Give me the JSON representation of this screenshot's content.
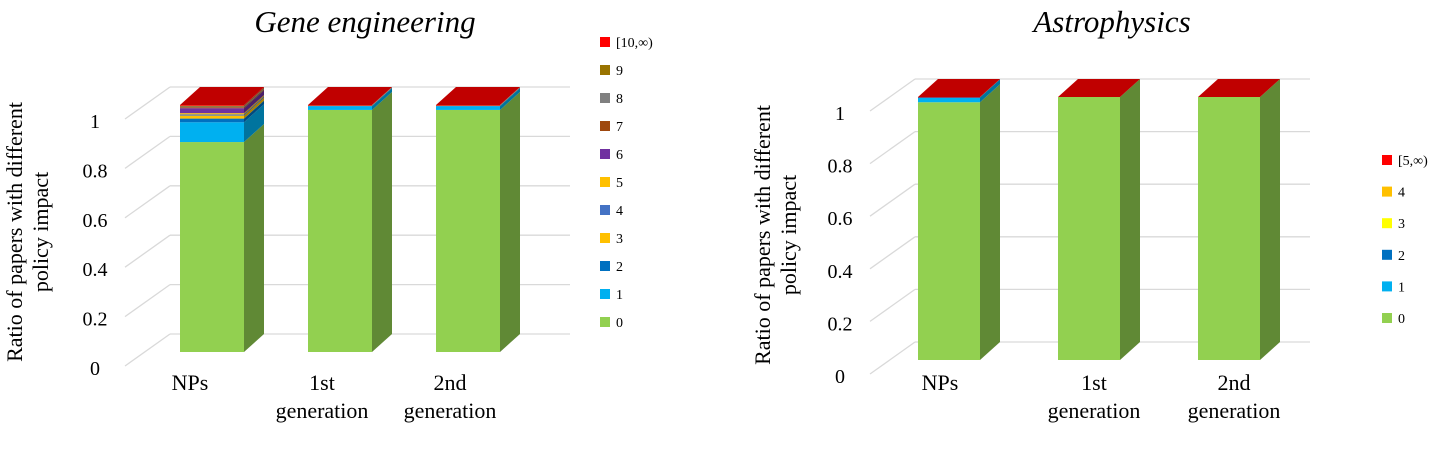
{
  "chart_data": [
    {
      "type": "bar",
      "stacked": true,
      "title": "Gene engineering",
      "ylabel": "Ratio of papers with different policy impact",
      "categories": [
        "NPs",
        "1st generation",
        "2nd generation"
      ],
      "ylim": [
        0,
        1
      ],
      "yticks": [
        "0",
        "0.2",
        "0.4",
        "0.6",
        "0.8",
        "1"
      ],
      "grid": true,
      "legend": "right",
      "series": [
        {
          "name": "0",
          "color": "#92d050",
          "values": [
            0.85,
            0.98,
            0.98
          ]
        },
        {
          "name": "1",
          "color": "#00b0f0",
          "values": [
            0.08,
            0.015,
            0.015
          ]
        },
        {
          "name": "2",
          "color": "#0070c0",
          "values": [
            0.015,
            0.002,
            0.002
          ]
        },
        {
          "name": "3",
          "color": "#ffc000",
          "values": [
            0.012,
            0.001,
            0.001
          ]
        },
        {
          "name": "4",
          "color": "#4472c4",
          "values": [
            0.005,
            0.0005,
            0.0005
          ]
        },
        {
          "name": "5",
          "color": "#ffc000",
          "values": [
            0.005,
            0.0005,
            0.0005
          ]
        },
        {
          "name": "6",
          "color": "#7030a0",
          "values": [
            0.02,
            0.0005,
            0.0005
          ]
        },
        {
          "name": "7",
          "color": "#9e480e",
          "values": [
            0.004,
            0,
            0
          ]
        },
        {
          "name": "8",
          "color": "#808080",
          "values": [
            0.003,
            0,
            0
          ]
        },
        {
          "name": "9",
          "color": "#997300",
          "values": [
            0.003,
            0,
            0
          ]
        },
        {
          "name": "[10,∞)",
          "color": "#ff0000",
          "values": [
            0.003,
            0.0005,
            0.0005
          ]
        }
      ]
    },
    {
      "type": "bar",
      "stacked": true,
      "title": "Astrophysics",
      "ylabel": "Ratio of papers with different policy impact",
      "categories": [
        "NPs",
        "1st generation",
        "2nd generation"
      ],
      "ylim": [
        0,
        1
      ],
      "yticks": [
        "0",
        "0.2",
        "0.4",
        "0.6",
        "0.8",
        "1"
      ],
      "grid": true,
      "legend": "right",
      "series": [
        {
          "name": "0",
          "color": "#92d050",
          "values": [
            0.98,
            1.0,
            1.0
          ]
        },
        {
          "name": "1",
          "color": "#00b0f0",
          "values": [
            0.018,
            0,
            0
          ]
        },
        {
          "name": "2",
          "color": "#0070c0",
          "values": [
            0.001,
            0,
            0
          ]
        },
        {
          "name": "3",
          "color": "#ffff00",
          "values": [
            0,
            0,
            0
          ]
        },
        {
          "name": "4",
          "color": "#ffc000",
          "values": [
            0,
            0,
            0
          ]
        },
        {
          "name": "[5,∞)",
          "color": "#ff0000",
          "values": [
            0.001,
            0,
            0
          ]
        }
      ]
    }
  ]
}
